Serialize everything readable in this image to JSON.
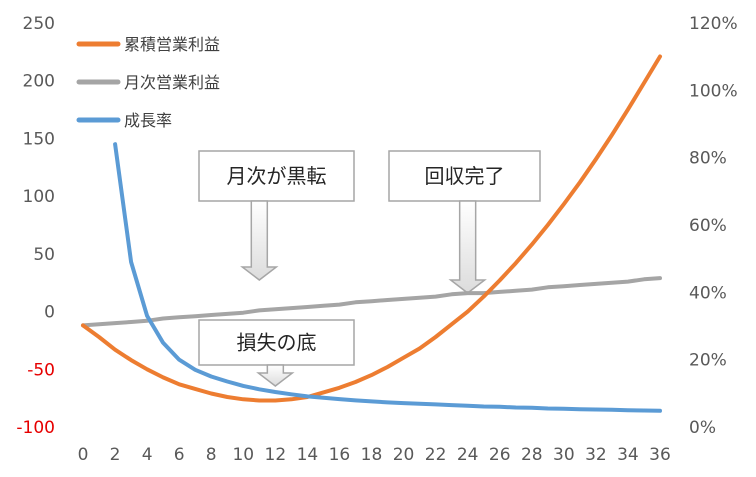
{
  "chart_data": {
    "type": "line",
    "x": [
      0,
      1,
      2,
      3,
      4,
      5,
      6,
      7,
      8,
      9,
      10,
      11,
      12,
      13,
      14,
      15,
      16,
      17,
      18,
      19,
      20,
      21,
      22,
      23,
      24,
      25,
      26,
      27,
      28,
      29,
      30,
      31,
      32,
      33,
      34,
      35,
      36
    ],
    "x_ticks": [
      "0",
      "2",
      "4",
      "6",
      "8",
      "10",
      "12",
      "14",
      "16",
      "18",
      "20",
      "22",
      "24",
      "26",
      "28",
      "30",
      "32",
      "34",
      "36"
    ],
    "y_left": {
      "ylim": [
        -100,
        250
      ],
      "ticks": [
        "250",
        "200",
        "150",
        "100",
        "50",
        "0",
        "-50",
        "-100"
      ],
      "negative_tick_color": "#e60000"
    },
    "y_right": {
      "ylim": [
        0,
        1.2
      ],
      "ticks": [
        "120%",
        "100%",
        "80%",
        "60%",
        "40%",
        "20%",
        "0%"
      ]
    },
    "series": [
      {
        "name": "累積営業利益",
        "axis": "left",
        "color": "#ed7d31",
        "values": [
          -12,
          -22,
          -33,
          -42,
          -50,
          -57,
          -63,
          -67,
          -71,
          -74,
          -76,
          -77,
          -77,
          -76,
          -74,
          -70,
          -66,
          -61,
          -55,
          -48,
          -40,
          -32,
          -22,
          -11,
          0,
          13,
          27,
          42,
          58,
          75,
          93,
          112,
          132,
          153,
          175,
          198,
          221
        ]
      },
      {
        "name": "月次営業利益",
        "axis": "left",
        "color": "#a5a5a5",
        "values": [
          -12,
          -11,
          -10,
          -9,
          -8,
          -6,
          -5,
          -4,
          -3,
          -2,
          -1,
          1,
          2,
          3,
          4,
          5,
          6,
          8,
          9,
          10,
          11,
          12,
          13,
          15,
          16,
          16,
          17,
          18,
          19,
          21,
          22,
          23,
          24,
          25,
          26,
          28,
          29
        ]
      },
      {
        "name": "成長率",
        "axis": "right",
        "color": "#5b9bd5",
        "values": [
          null,
          null,
          0.84,
          0.49,
          0.33,
          0.25,
          0.2,
          0.17,
          0.15,
          0.135,
          0.122,
          0.112,
          0.104,
          0.097,
          0.091,
          0.087,
          0.083,
          0.079,
          0.076,
          0.073,
          0.071,
          0.069,
          0.067,
          0.065,
          0.063,
          0.061,
          0.06,
          0.058,
          0.057,
          0.055,
          0.054,
          0.053,
          0.052,
          0.051,
          0.05,
          0.049,
          0.048
        ]
      }
    ],
    "legend": {
      "placement": "top-left"
    },
    "annotations": [
      {
        "text": "月次が黒転",
        "x": 11
      },
      {
        "text": "回収完了",
        "x": 24
      },
      {
        "text": "損失の底",
        "x": 12
      }
    ],
    "grid": false
  }
}
